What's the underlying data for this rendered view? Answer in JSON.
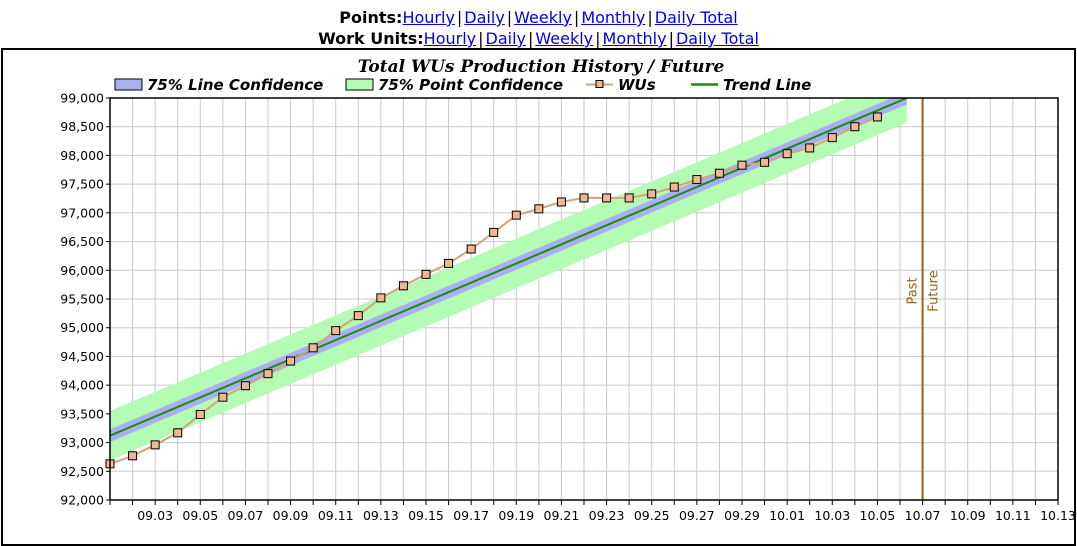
{
  "nav": {
    "points_label": "Points:",
    "work_units_label": "Work Units:",
    "links": [
      "Hourly",
      "Daily",
      "Weekly",
      "Monthly",
      "Daily Total"
    ],
    "separator": "|",
    "link_color": "#0000ee"
  },
  "chart_data": {
    "type": "line",
    "title": "Total WUs Production History / Future",
    "xlabel": "",
    "ylabel": "",
    "x_tick_labels": [
      "09.03",
      "09.05",
      "09.07",
      "09.09",
      "09.11",
      "09.13",
      "09.15",
      "09.17",
      "09.19",
      "09.21",
      "09.23",
      "09.25",
      "09.27",
      "09.29",
      "10.01",
      "10.03",
      "10.05",
      "10.07",
      "10.09",
      "10.11",
      "10.13"
    ],
    "x_days_range": [
      1,
      43
    ],
    "ylim": [
      92000,
      99000
    ],
    "y_ticks": [
      92000,
      92500,
      93000,
      93500,
      94000,
      94500,
      95000,
      95500,
      96000,
      96500,
      97000,
      97500,
      98000,
      98500,
      99000
    ],
    "y_tick_labels": [
      "92,000",
      "92,500",
      "93,000",
      "93,500",
      "94,000",
      "94,500",
      "95,000",
      "95,500",
      "96,000",
      "96,500",
      "97,000",
      "97,500",
      "98,000",
      "98,500",
      "99,000"
    ],
    "grid": true,
    "legend_position": "top",
    "legend": [
      {
        "label": "75% Line Confidence",
        "kind": "band",
        "color": "#aab0ee"
      },
      {
        "label": "75% Point Confidence",
        "kind": "band",
        "color": "#b4fbb4"
      },
      {
        "label": "WUs",
        "kind": "marker-line",
        "color": "#d4a279"
      },
      {
        "label": "Trend Line",
        "kind": "line",
        "color": "#1a8a1a"
      }
    ],
    "series": [
      {
        "name": "WUs",
        "type": "line-markers",
        "color": "#d4a279",
        "marker_color": "#f1b791",
        "x_days": [
          1,
          2,
          3,
          4,
          5,
          6,
          7,
          8,
          9,
          10,
          11,
          12,
          13,
          14,
          15,
          16,
          17,
          18,
          19,
          20,
          21,
          22,
          23,
          24,
          25,
          26,
          27,
          28,
          29,
          30,
          31,
          32,
          33,
          34,
          35,
          36
        ],
        "values": [
          92630,
          92770,
          92960,
          93170,
          93490,
          93790,
          93990,
          94200,
          94420,
          94650,
          94950,
          95210,
          95520,
          95730,
          95930,
          96120,
          96370,
          96660,
          96960,
          97070,
          97190,
          97260,
          97260,
          97260,
          97330,
          97450,
          97580,
          97690,
          97830,
          97880,
          98030,
          98130,
          98310,
          98500,
          98670,
          null
        ]
      }
    ],
    "trend_line": {
      "name": "Trend Line",
      "color": "#1a8a1a",
      "x_days": [
        1,
        36.3
      ],
      "values": [
        93120,
        99000
      ]
    },
    "line_confidence": {
      "name": "75% Line Confidence",
      "color": "#aab0ee",
      "x_days": [
        1,
        36.3
      ],
      "upper": [
        93230,
        99110
      ],
      "lower": [
        93010,
        98890
      ]
    },
    "point_confidence": {
      "name": "75% Point Confidence",
      "color": "#b4fbb4",
      "x_days": [
        1,
        36.3
      ],
      "upper": [
        93550,
        99430
      ],
      "lower": [
        92690,
        98570
      ]
    },
    "marker_line": {
      "x_day": 37,
      "color": "#9c5f13",
      "label_before": "Past",
      "label_after": "Future"
    }
  }
}
